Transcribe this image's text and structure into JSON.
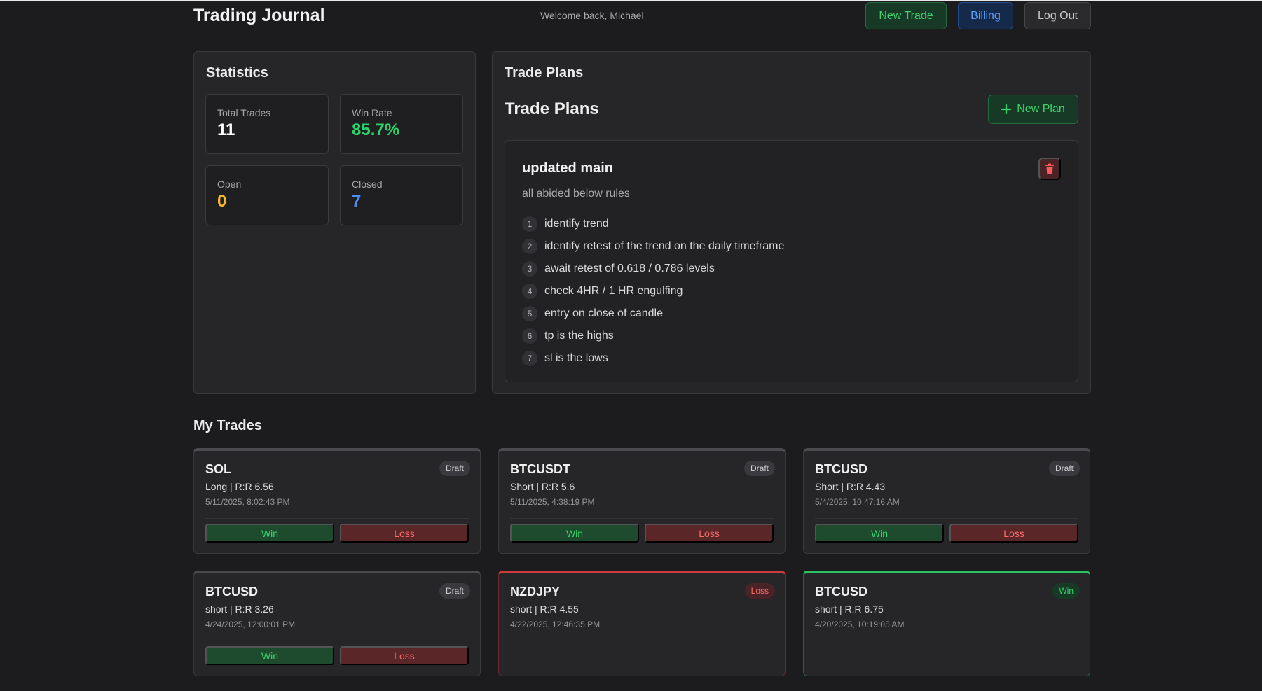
{
  "header": {
    "title": "Trading Journal",
    "welcome": "Welcome back, Michael",
    "new_trade_label": "New Trade",
    "billing_label": "Billing",
    "logout_label": "Log Out"
  },
  "statistics": {
    "title": "Statistics",
    "total_trades": {
      "label": "Total Trades",
      "value": "11",
      "color": "#ffffff"
    },
    "win_rate": {
      "label": "Win Rate",
      "value": "85.7%",
      "color": "#2bd46b"
    },
    "open": {
      "label": "Open",
      "value": "0",
      "color": "#f5b82e"
    },
    "closed": {
      "label": "Closed",
      "value": "7",
      "color": "#4a8ff5"
    }
  },
  "trade_plans": {
    "panel_title": "Trade Plans",
    "heading": "Trade Plans",
    "new_plan_label": "New Plan",
    "plan": {
      "name": "updated main",
      "description": "all abided below rules",
      "rules": [
        {
          "num": "1",
          "text": "identify trend"
        },
        {
          "num": "2",
          "text": "identify retest of the trend on the daily timeframe"
        },
        {
          "num": "3",
          "text": "await retest of 0.618 / 0.786 levels"
        },
        {
          "num": "4",
          "text": "check 4HR / 1 HR engulfing"
        },
        {
          "num": "5",
          "text": "entry on close of candle"
        },
        {
          "num": "6",
          "text": "tp is the highs"
        },
        {
          "num": "7",
          "text": "sl is the lows"
        }
      ]
    }
  },
  "trades": {
    "title": "My Trades",
    "win_label": "Win",
    "loss_label": "Loss",
    "items": [
      {
        "symbol": "SOL",
        "meta": "Long | R:R 6.56",
        "date": "5/11/2025, 8:02:43 PM",
        "status": "Draft"
      },
      {
        "symbol": "BTCUSDT",
        "meta": "Short | R:R 5.6",
        "date": "5/11/2025, 4:38:19 PM",
        "status": "Draft"
      },
      {
        "symbol": "BTCUSD",
        "meta": "Short | R:R 4.43",
        "date": "5/4/2025, 10:47:16 AM",
        "status": "Draft"
      },
      {
        "symbol": "BTCUSD",
        "meta": "short | R:R 3.26",
        "date": "4/24/2025, 12:00:01 PM",
        "status": "Draft"
      },
      {
        "symbol": "NZDJPY",
        "meta": "short | R:R 4.55",
        "date": "4/22/2025, 12:46:35 PM",
        "status": "Loss"
      },
      {
        "symbol": "BTCUSD",
        "meta": "short | R:R 6.75",
        "date": "4/20/2025, 10:19:05 AM",
        "status": "Win"
      }
    ]
  }
}
